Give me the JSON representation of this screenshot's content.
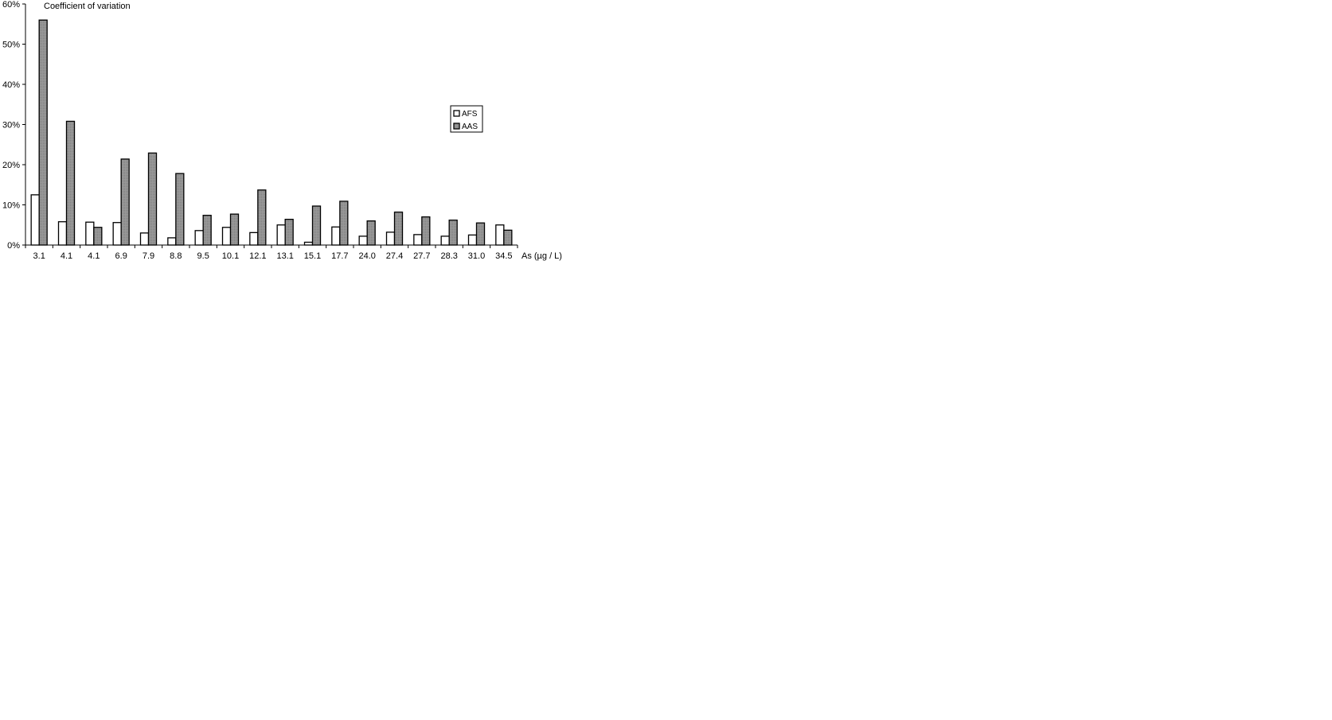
{
  "chart_data": {
    "type": "bar",
    "title": "Coefficient of variation",
    "xlabel": "As (µg / L)",
    "ylabel": "",
    "ylim": [
      0,
      60
    ],
    "yticks": [
      "0%",
      "10%",
      "20%",
      "30%",
      "40%",
      "50%",
      "60%"
    ],
    "y_tick_values": [
      0,
      10,
      20,
      30,
      40,
      50,
      60
    ],
    "grid": false,
    "legend_position": "right",
    "categories": [
      "3.1",
      "4.1",
      "4.1",
      "6.9",
      "7.9",
      "8.8",
      "9.5",
      "10.1",
      "12.1",
      "13.1",
      "15.1",
      "17.7",
      "24.0",
      "27.4",
      "27.7",
      "28.3",
      "31.0",
      "34.5"
    ],
    "series": [
      {
        "name": "AFS",
        "color": "#ffffff",
        "values": [
          12.5,
          5.8,
          5.7,
          5.6,
          3.0,
          1.8,
          3.6,
          4.4,
          3.1,
          5.0,
          0.7,
          4.5,
          2.2,
          3.2,
          2.6,
          2.2,
          2.5,
          5.0
        ]
      },
      {
        "name": "AAS",
        "color": "#9a9a9a",
        "values": [
          56.0,
          30.8,
          4.4,
          21.4,
          22.9,
          17.8,
          7.4,
          7.7,
          13.7,
          6.4,
          9.7,
          10.9,
          6.0,
          8.2,
          7.0,
          6.2,
          5.5,
          3.7
        ]
      }
    ]
  }
}
